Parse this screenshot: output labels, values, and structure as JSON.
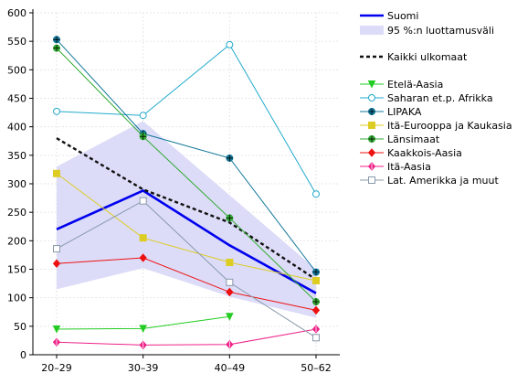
{
  "chart_data": {
    "type": "line",
    "categories": [
      "20–29",
      "30–39",
      "40–49",
      "50–62"
    ],
    "ylim": [
      0,
      600
    ],
    "yticks": [
      0,
      50,
      100,
      150,
      200,
      250,
      300,
      350,
      400,
      450,
      500,
      550,
      600
    ],
    "grid": true,
    "legend_position": "right",
    "confidence_band": {
      "name": "95 %:n luottamusväli",
      "color": "#dcdcf8",
      "lower": [
        115,
        152,
        102,
        65
      ],
      "upper": [
        330,
        410,
        280,
        150
      ]
    },
    "series": [
      {
        "name": "Suomi",
        "color": "#0000ee",
        "dash": "",
        "width": 2.6,
        "marker": "none",
        "values": [
          220,
          288,
          192,
          108
        ]
      },
      {
        "name": "Kaikki ulkomaat",
        "color": "#111111",
        "dash": "4,3",
        "width": 2.4,
        "marker": "none",
        "values": [
          380,
          290,
          232,
          132
        ]
      },
      {
        "name": "Etelä-Aasia",
        "color": "#22cc22",
        "dash": "",
        "width": 1,
        "marker": "tri-down",
        "values": [
          45,
          46,
          67,
          null
        ]
      },
      {
        "name": "Saharan et.p.  Afrikka",
        "color": "#22aacc",
        "dash": "",
        "width": 1,
        "marker": "circle",
        "values": [
          427,
          420,
          544,
          282
        ]
      },
      {
        "name": "LIPAKA",
        "color": "#117799",
        "dash": "",
        "width": 1,
        "marker": "circle-star",
        "values": [
          553,
          388,
          345,
          145
        ]
      },
      {
        "name": "Itä-Eurooppa ja Kaukasia",
        "color": "#ddcc22",
        "dash": "",
        "width": 1,
        "marker": "square",
        "values": [
          318,
          205,
          162,
          130
        ]
      },
      {
        "name": "Länsimaat",
        "color": "#33aa33",
        "dash": "",
        "width": 1,
        "marker": "circle-star",
        "values": [
          538,
          383,
          240,
          93
        ]
      },
      {
        "name": "Kaakkois-Aasia",
        "color": "#ee1111",
        "dash": "",
        "width": 1,
        "marker": "diamond",
        "values": [
          160,
          170,
          110,
          78
        ]
      },
      {
        "name": "Itä-Aasia",
        "color": "#ee2288",
        "dash": "",
        "width": 1,
        "marker": "diamond-plus",
        "values": [
          22,
          17,
          18,
          45
        ]
      },
      {
        "name": "Lat.  Amerikka ja muut",
        "color": "#8899aa",
        "dash": "",
        "width": 1,
        "marker": "square",
        "values": [
          186,
          270,
          127,
          30
        ]
      }
    ]
  }
}
